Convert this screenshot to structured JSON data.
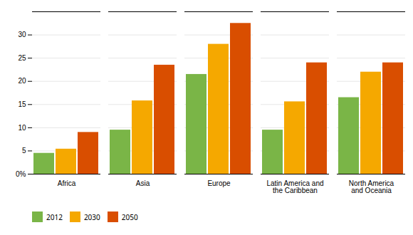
{
  "chart_data": {
    "type": "bar",
    "categories": [
      "Africa",
      "Asia",
      "Europe",
      "Latin America and\nthe Caribbean",
      "North America\nand Oceania"
    ],
    "series": [
      {
        "name": "2012",
        "color": "#7ab547",
        "values": [
          4.5,
          9.5,
          21.5,
          9.5,
          16.5
        ]
      },
      {
        "name": "2030",
        "color": "#f5a800",
        "values": [
          5.4,
          15.8,
          28.0,
          15.6,
          22.0
        ]
      },
      {
        "name": "2050",
        "color": "#d94e00",
        "values": [
          9.0,
          23.5,
          32.5,
          24.0,
          24.0
        ]
      }
    ],
    "ylim": [
      0,
      35
    ],
    "yticks": [
      {
        "value": 0,
        "label": "0%"
      },
      5,
      10,
      15,
      20,
      25,
      30
    ],
    "grid": true,
    "legend": "lower left"
  }
}
